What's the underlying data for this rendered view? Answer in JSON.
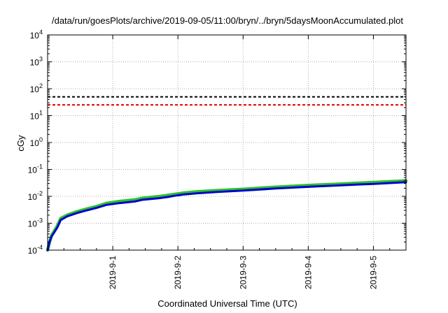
{
  "chart_data": {
    "type": "line",
    "title": "/data/run/goesPlots/archive/2019-09-05/11:00/bryn/../bryn/5daysMoonAccumulated.plot",
    "xlabel": "Coordinated Universal Time (UTC)",
    "ylabel": "cGy",
    "y_scale": "log",
    "ylim": [
      0.0001,
      10000
    ],
    "xlim_days_from_aug31": [
      0,
      5.5
    ],
    "y_ticks": [
      {
        "base": "10",
        "exp": "-4",
        "value": 0.0001
      },
      {
        "base": "10",
        "exp": "-3",
        "value": 0.001
      },
      {
        "base": "10",
        "exp": "-2",
        "value": 0.01
      },
      {
        "base": "10",
        "exp": "-1",
        "value": 0.1
      },
      {
        "base": "10",
        "exp": "0",
        "value": 1
      },
      {
        "base": "10",
        "exp": "1",
        "value": 10
      },
      {
        "base": "10",
        "exp": "2",
        "value": 100
      },
      {
        "base": "10",
        "exp": "3",
        "value": 1000
      },
      {
        "base": "10",
        "exp": "4",
        "value": 10000
      }
    ],
    "x_ticks": [
      {
        "label": "2019-9-1",
        "day": 1
      },
      {
        "label": "2019-9-2",
        "day": 2
      },
      {
        "label": "2019-9-3",
        "day": 3
      },
      {
        "label": "2019-9-4",
        "day": 4
      },
      {
        "label": "2019-9-5",
        "day": 5
      }
    ],
    "grid": true,
    "thresholds": [
      {
        "value": 50,
        "color": "#000000",
        "style": "dashed"
      },
      {
        "value": 25,
        "color": "#e00000",
        "style": "dashed"
      }
    ],
    "series": [
      {
        "color": "#2ec02e",
        "points": [
          [
            0.0,
            0.0001
          ],
          [
            0.03,
            0.0002
          ],
          [
            0.06,
            0.00035
          ],
          [
            0.1,
            0.0005
          ],
          [
            0.15,
            0.0008
          ],
          [
            0.2,
            0.0015
          ],
          [
            0.3,
            0.002
          ],
          [
            0.45,
            0.0027
          ],
          [
            0.6,
            0.0034
          ],
          [
            0.75,
            0.0042
          ],
          [
            0.9,
            0.0055
          ],
          [
            1.1,
            0.0065
          ],
          [
            1.35,
            0.0075
          ],
          [
            1.45,
            0.0085
          ],
          [
            1.7,
            0.0098
          ],
          [
            1.85,
            0.011
          ],
          [
            1.95,
            0.012
          ],
          [
            2.1,
            0.0135
          ],
          [
            2.3,
            0.015
          ],
          [
            2.6,
            0.0165
          ],
          [
            3.0,
            0.0185
          ],
          [
            3.5,
            0.022
          ],
          [
            4.0,
            0.0255
          ],
          [
            4.5,
            0.029
          ],
          [
            5.0,
            0.033
          ],
          [
            5.5,
            0.038
          ]
        ]
      },
      {
        "color": "#0000cc",
        "points": [
          [
            0.0,
            0.0001
          ],
          [
            0.03,
            0.0002
          ],
          [
            0.06,
            0.00032
          ],
          [
            0.1,
            0.00045
          ],
          [
            0.15,
            0.0007
          ],
          [
            0.2,
            0.0013
          ],
          [
            0.3,
            0.0018
          ],
          [
            0.45,
            0.0024
          ],
          [
            0.6,
            0.003
          ],
          [
            0.75,
            0.0037
          ],
          [
            0.9,
            0.0048
          ],
          [
            1.1,
            0.0056
          ],
          [
            1.35,
            0.0065
          ],
          [
            1.45,
            0.0074
          ],
          [
            1.7,
            0.0085
          ],
          [
            1.85,
            0.0095
          ],
          [
            1.95,
            0.0105
          ],
          [
            2.1,
            0.0118
          ],
          [
            2.3,
            0.013
          ],
          [
            2.6,
            0.0145
          ],
          [
            3.0,
            0.0163
          ],
          [
            3.5,
            0.0195
          ],
          [
            4.0,
            0.0225
          ],
          [
            4.5,
            0.0258
          ],
          [
            5.0,
            0.029
          ],
          [
            5.5,
            0.0335
          ]
        ]
      }
    ]
  }
}
